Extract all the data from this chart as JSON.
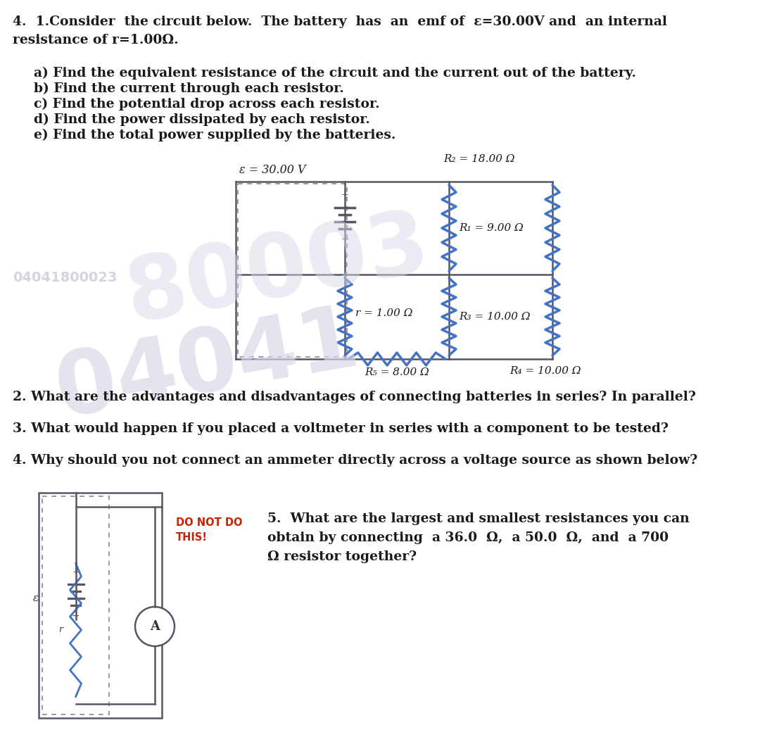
{
  "bg_color": "#ffffff",
  "text_color": "#1a1a1a",
  "wire_color": "#555566",
  "res_color": "#4472c4",
  "wm_color1": "#d0d0dc",
  "wm_color2": "#d8d8e8",
  "title_line1": "4.  1.Consider  the circuit below.  The battery  has  an  emf of  ε=30.00V and  an internal",
  "title_line2": "resistance of r=1.00Ω.",
  "parts": [
    "a) Find the equivalent resistance of the circuit and the current out of the battery.",
    "b) Find the current through each resistor.",
    "c) Find the potential drop across each resistor.",
    "d) Find the power dissipated by each resistor.",
    "e) Find the total power supplied by the batteries."
  ],
  "q2": "2. What are the advantages and disadvantages of connecting batteries in series? In parallel?",
  "q3": "3. What would happen if you placed a voltmeter in series with a component to be tested?",
  "q4": "4. Why should you not connect an ammeter directly across a voltage source as shown below?",
  "q5_line1": "5.  What are the largest and smallest resistances you can",
  "q5_line2": "obtain by connecting  a 36.0  Ω,  a 50.0  Ω,  and  a 700",
  "q5_line3": "Ω resistor together?",
  "do_not": "DO NOT DO\nTHIS!",
  "emf_label": "ε = 30.00 V",
  "r_label": "r = 1.00 Ω",
  "R1_label": "R₁ = 9.00 Ω",
  "R2_label": "R₂ = 18.00 Ω",
  "R3_label": "R₃ = 10.00 Ω",
  "R4_label": "R₄ = 10.00 Ω",
  "R5_label": "R₅ = 8.00 Ω"
}
